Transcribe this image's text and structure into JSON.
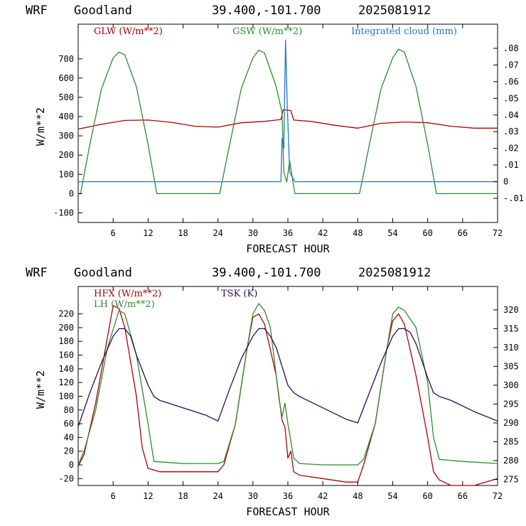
{
  "charts": [
    {
      "header": {
        "model": "WRF",
        "station": "Goodland",
        "coords": "39.400,-101.700",
        "init": "2025081912"
      }
    },
    {
      "header": {
        "model": "WRF",
        "station": "Goodland",
        "coords": "39.400,-101.700",
        "init": "2025081912"
      }
    }
  ],
  "colors": {
    "red": "#b00000",
    "green": "#2e8b2e",
    "blue": "#1f77c8",
    "purple": "#2a0a5a"
  },
  "chart_data": [
    {
      "type": "line",
      "xlabel": "FORECAST HOUR",
      "ylabel": "W/m**2",
      "xlim": [
        0,
        72
      ],
      "ylim": [
        -150,
        880
      ],
      "xticks": [
        6,
        12,
        18,
        24,
        30,
        36,
        42,
        48,
        54,
        60,
        66,
        72
      ],
      "yticks": [
        -100,
        0,
        100,
        200,
        300,
        400,
        500,
        600,
        700
      ],
      "y2lim": [
        -0.0245,
        0.0945
      ],
      "y2ticks": [
        -0.01,
        0,
        0.01,
        0.02,
        0.03,
        0.04,
        0.05,
        0.06,
        0.07,
        0.08
      ],
      "y2ticklabels": [
        "-.01",
        "0",
        ".01",
        ".02",
        ".03",
        ".04",
        ".05",
        ".06",
        ".07",
        ".08"
      ],
      "grid": false,
      "series": [
        {
          "name": "GLW (W/m**2)",
          "color": "#b00000",
          "axis": "left",
          "x": [
            0,
            4,
            8,
            12,
            16,
            20,
            24,
            28,
            32,
            34.8,
            35.2,
            36.5,
            37,
            40,
            44,
            48,
            52,
            56,
            60,
            64,
            68,
            72
          ],
          "y": [
            335,
            360,
            380,
            382,
            370,
            350,
            345,
            368,
            375,
            385,
            435,
            432,
            382,
            375,
            355,
            340,
            365,
            372,
            368,
            350,
            340,
            340
          ]
        },
        {
          "name": "GSW (W/m**2)",
          "color": "#2e8b2e",
          "axis": "left",
          "x": [
            0,
            0.4,
            2,
            4,
            6,
            7,
            8,
            10,
            12,
            13.5,
            24,
            24.3,
            26,
            28,
            30,
            31,
            32,
            34,
            35,
            35.3,
            35.8,
            36.3,
            37.2,
            48,
            48.3,
            50,
            52,
            54,
            55,
            56,
            58,
            60,
            61.5,
            72
          ],
          "y": [
            0,
            0,
            255,
            545,
            705,
            735,
            720,
            555,
            255,
            0,
            0,
            0,
            255,
            545,
            705,
            745,
            730,
            555,
            420,
            110,
            60,
            170,
            0,
            0,
            0,
            255,
            545,
            705,
            750,
            735,
            555,
            255,
            0,
            0
          ]
        },
        {
          "name": "Integrated cloud (mm)",
          "color": "#1f77c8",
          "axis": "right",
          "x": [
            0,
            34.8,
            35.0,
            35.3,
            35.6,
            35.9,
            36.3,
            36.7,
            37.2,
            72
          ],
          "y": [
            0,
            0,
            0.026,
            0.02,
            0.085,
            0.045,
            0.006,
            0.003,
            0,
            0
          ]
        }
      ]
    },
    {
      "type": "line",
      "xlabel": "FORECAST HOUR",
      "ylabel": "W/m**2",
      "xlim": [
        0,
        72
      ],
      "ylim": [
        -30,
        260
      ],
      "xticks": [
        6,
        12,
        18,
        24,
        30,
        36,
        42,
        48,
        54,
        60,
        66,
        72
      ],
      "yticks": [
        -20,
        0,
        20,
        40,
        60,
        80,
        100,
        120,
        140,
        160,
        180,
        200,
        220
      ],
      "y2lim": [
        273.4,
        326.2
      ],
      "y2ticks": [
        275,
        280,
        285,
        290,
        295,
        300,
        305,
        310,
        315,
        320
      ],
      "grid": false,
      "series": [
        {
          "name": "HFX (W/m**2)",
          "color": "#b00000",
          "axis": "left",
          "x": [
            0,
            1,
            3,
            5,
            6,
            7,
            8,
            10,
            11,
            12,
            14,
            18,
            22,
            24,
            25,
            27,
            29,
            30,
            31,
            32,
            34,
            35,
            35.5,
            36,
            36.5,
            37,
            38,
            42,
            46,
            48,
            49,
            51,
            53,
            54,
            55,
            56,
            58,
            60,
            61,
            62,
            64,
            68,
            72
          ],
          "y": [
            -2,
            15,
            90,
            185,
            232,
            228,
            200,
            100,
            25,
            -5,
            -10,
            -10,
            -10,
            -10,
            0,
            60,
            170,
            215,
            220,
            205,
            130,
            65,
            55,
            10,
            20,
            -10,
            -15,
            -20,
            -25,
            -25,
            0,
            60,
            170,
            210,
            220,
            205,
            130,
            40,
            -10,
            -22,
            -30,
            -30,
            -20
          ]
        },
        {
          "name": "LH (W/m**2)",
          "color": "#2e8b2e",
          "axis": "left",
          "x": [
            0,
            1,
            3,
            5,
            7,
            8,
            10,
            12,
            13,
            18,
            24,
            25,
            27,
            29,
            30,
            31,
            32,
            33,
            34,
            34.5,
            35,
            35.5,
            36,
            37,
            38,
            42,
            48,
            49,
            51,
            53,
            54,
            55,
            56,
            58,
            60,
            61,
            62,
            66,
            72
          ],
          "y": [
            0,
            20,
            80,
            170,
            225,
            220,
            160,
            60,
            5,
            2,
            2,
            5,
            60,
            170,
            220,
            235,
            225,
            200,
            130,
            95,
            70,
            90,
            60,
            10,
            2,
            0,
            0,
            8,
            60,
            170,
            220,
            230,
            225,
            200,
            120,
            40,
            8,
            5,
            2
          ]
        },
        {
          "name": "TSK (K)",
          "color": "#2a0a5a",
          "axis": "right",
          "x": [
            0,
            2,
            4,
            6,
            7,
            8,
            9,
            10,
            12,
            13,
            14,
            18,
            22,
            24,
            26,
            28,
            30,
            31,
            32,
            33,
            34,
            35,
            36,
            37,
            38,
            42,
            46,
            48,
            50,
            52,
            54,
            55,
            56,
            57,
            58,
            60,
            61,
            62,
            64,
            68,
            72
          ],
          "y": [
            289,
            298,
            306,
            313,
            315,
            315,
            313,
            308,
            300,
            297,
            296,
            294,
            292,
            290.5,
            299,
            307,
            313,
            315,
            315,
            313,
            310,
            305,
            300,
            298,
            297,
            294,
            291,
            290,
            298,
            306,
            313,
            315,
            315,
            314,
            311,
            302,
            298,
            297,
            296,
            293,
            290.5
          ]
        }
      ]
    }
  ]
}
